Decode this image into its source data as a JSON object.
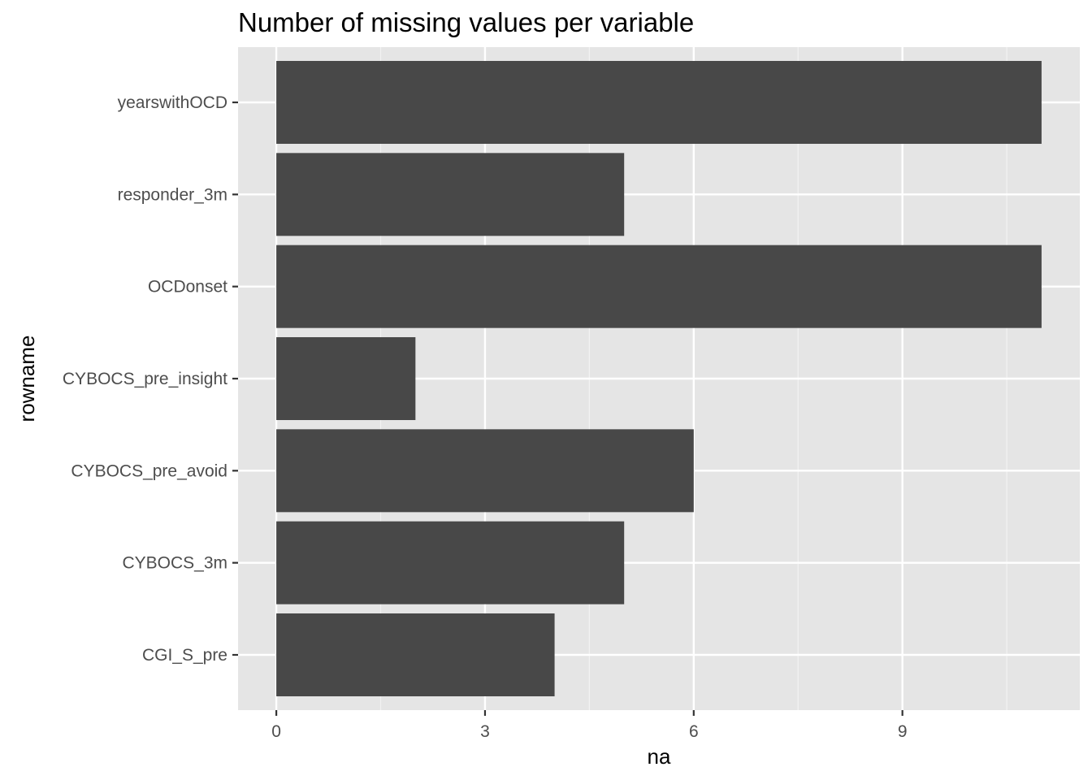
{
  "chart_data": {
    "type": "bar",
    "orientation": "horizontal",
    "title": "Number of missing values per variable",
    "xlabel": "na",
    "ylabel": "rowname",
    "categories": [
      "CGI_S_pre",
      "CYBOCS_3m",
      "CYBOCS_pre_avoid",
      "CYBOCS_pre_insight",
      "OCDonset",
      "responder_3m",
      "yearswithOCD"
    ],
    "values": [
      4,
      5,
      6,
      2,
      11,
      5,
      11
    ],
    "xlim": [
      -0.55,
      11.55
    ],
    "xticks": [
      0,
      3,
      6,
      9
    ],
    "grid": true,
    "legend": "none",
    "colors": {
      "bar": "#484848",
      "panel": "#e5e5e5",
      "grid_major": "#ffffff",
      "grid_minor": "#f2f2f2",
      "tick_text": "#4d4d4d",
      "text": "#000000"
    }
  }
}
